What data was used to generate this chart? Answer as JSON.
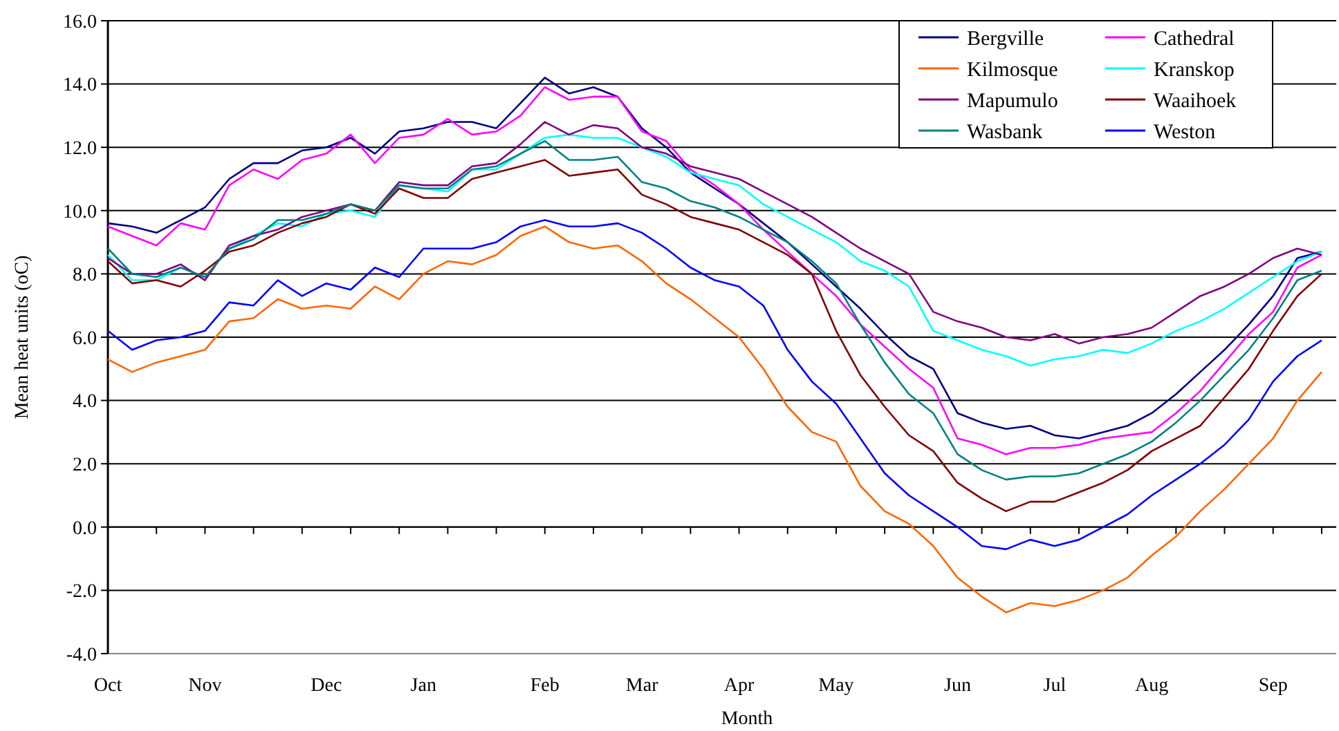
{
  "chart_data": {
    "type": "line",
    "xlabel": "Month",
    "ylabel": "Mean heat units (oC)",
    "categories": [
      "Oct",
      null,
      null,
      null,
      "Nov",
      null,
      null,
      null,
      null,
      "Dec",
      null,
      null,
      null,
      "Jan",
      null,
      null,
      null,
      null,
      "Feb",
      null,
      null,
      null,
      "Mar",
      null,
      null,
      null,
      "Apr",
      null,
      null,
      null,
      "May",
      null,
      null,
      null,
      null,
      "Jun",
      null,
      null,
      null,
      "Jul",
      null,
      null,
      null,
      "Aug",
      null,
      null,
      null,
      null,
      "Sep",
      null,
      null
    ],
    "ylim": [
      -4,
      16
    ],
    "yticks": [
      {
        "value": -4,
        "label": "-4.0"
      },
      {
        "value": -2,
        "label": "-2.0"
      },
      {
        "value": 0,
        "label": "0.0"
      },
      {
        "value": 2,
        "label": "2.0"
      },
      {
        "value": 4,
        "label": "4.0"
      },
      {
        "value": 6,
        "label": "6.0"
      },
      {
        "value": 8,
        "label": "8.0"
      },
      {
        "value": 10,
        "label": "10.0"
      },
      {
        "value": 12,
        "label": "12.0"
      },
      {
        "value": 14,
        "label": "14.0"
      },
      {
        "value": 16,
        "label": "16.0"
      }
    ],
    "grid": "y",
    "legend": "top right",
    "marker": "none",
    "line_style": "solid",
    "series": [
      {
        "name": "Bergville",
        "color": "#000080",
        "values": [
          9.6,
          9.5,
          9.3,
          9.7,
          10.1,
          11.0,
          11.5,
          11.5,
          11.9,
          12.0,
          12.3,
          11.8,
          12.5,
          12.6,
          12.8,
          12.8,
          12.6,
          13.4,
          14.2,
          13.7,
          13.9,
          13.6,
          12.6,
          12.0,
          11.2,
          10.7,
          10.2,
          9.6,
          9.0,
          8.3,
          7.6,
          6.9,
          6.1,
          5.4,
          5.0,
          3.6,
          3.3,
          3.1,
          3.2,
          2.9,
          2.8,
          3.0,
          3.2,
          3.6,
          4.2,
          4.9,
          5.6,
          6.4,
          7.3,
          8.5,
          8.7
        ]
      },
      {
        "name": "Cathedral",
        "color": "#ff00ff",
        "values": [
          9.5,
          9.2,
          8.9,
          9.6,
          9.4,
          10.8,
          11.3,
          11.0,
          11.6,
          11.8,
          12.4,
          11.5,
          12.3,
          12.4,
          12.9,
          12.4,
          12.5,
          13.0,
          13.9,
          13.5,
          13.6,
          13.6,
          12.5,
          12.2,
          11.3,
          10.8,
          10.2,
          9.4,
          8.7,
          8.0,
          7.3,
          6.4,
          5.7,
          5.0,
          4.4,
          2.8,
          2.6,
          2.3,
          2.5,
          2.5,
          2.6,
          2.8,
          2.9,
          3.0,
          3.6,
          4.3,
          5.2,
          6.1,
          6.8,
          8.2,
          8.6
        ]
      },
      {
        "name": "Kilmosque",
        "color": "#ff6600",
        "values": [
          5.3,
          4.9,
          5.2,
          5.4,
          5.6,
          6.5,
          6.6,
          7.2,
          6.9,
          7.0,
          6.9,
          7.6,
          7.2,
          8.0,
          8.4,
          8.3,
          8.6,
          9.2,
          9.5,
          9.0,
          8.8,
          8.9,
          8.4,
          7.7,
          7.2,
          6.6,
          6.0,
          5.0,
          3.8,
          3.0,
          2.7,
          1.3,
          0.5,
          0.1,
          -0.6,
          -1.6,
          -2.2,
          -2.7,
          -2.4,
          -2.5,
          -2.3,
          -2.0,
          -1.6,
          -0.9,
          -0.3,
          0.5,
          1.2,
          2.0,
          2.8,
          4.0,
          4.9
        ]
      },
      {
        "name": "Kranskop",
        "color": "#00ffff",
        "values": [
          8.6,
          7.8,
          7.8,
          8.2,
          7.9,
          8.8,
          9.2,
          9.6,
          9.5,
          9.9,
          10.0,
          9.8,
          10.8,
          10.7,
          10.6,
          11.3,
          11.3,
          11.8,
          12.3,
          12.4,
          12.3,
          12.3,
          12.0,
          11.7,
          11.2,
          11.0,
          10.8,
          10.2,
          9.8,
          9.4,
          9.0,
          8.4,
          8.1,
          7.6,
          6.2,
          5.9,
          5.6,
          5.4,
          5.1,
          5.3,
          5.4,
          5.6,
          5.5,
          5.8,
          6.2,
          6.5,
          6.9,
          7.4,
          7.9,
          8.4,
          8.7
        ]
      },
      {
        "name": "Mapumulo",
        "color": "#800080",
        "values": [
          8.5,
          8.0,
          8.0,
          8.3,
          7.8,
          8.9,
          9.2,
          9.4,
          9.8,
          10.0,
          10.2,
          10.0,
          10.9,
          10.8,
          10.8,
          11.4,
          11.5,
          12.1,
          12.8,
          12.4,
          12.7,
          12.6,
          12.0,
          11.8,
          11.4,
          11.2,
          11.0,
          10.6,
          10.2,
          9.8,
          9.3,
          8.8,
          8.4,
          8.0,
          6.8,
          6.5,
          6.3,
          6.0,
          5.9,
          6.1,
          5.8,
          6.0,
          6.1,
          6.3,
          6.8,
          7.3,
          7.6,
          8.0,
          8.5,
          8.8,
          8.6
        ]
      },
      {
        "name": "Waaihoek",
        "color": "#800000",
        "values": [
          8.4,
          7.7,
          7.8,
          7.6,
          8.1,
          8.7,
          8.9,
          9.3,
          9.6,
          9.8,
          10.2,
          9.9,
          10.7,
          10.4,
          10.4,
          11.0,
          11.2,
          11.4,
          11.6,
          11.1,
          11.2,
          11.3,
          10.5,
          10.2,
          9.8,
          9.6,
          9.4,
          9.0,
          8.6,
          8.0,
          6.2,
          4.8,
          3.8,
          2.9,
          2.4,
          1.4,
          0.9,
          0.5,
          0.8,
          0.8,
          1.1,
          1.4,
          1.8,
          2.4,
          2.8,
          3.2,
          4.1,
          5.0,
          6.2,
          7.3,
          8.0
        ]
      },
      {
        "name": "Wasbank",
        "color": "#008080",
        "values": [
          8.8,
          8.0,
          7.9,
          8.2,
          7.9,
          8.8,
          9.1,
          9.7,
          9.7,
          9.9,
          10.2,
          10.0,
          10.8,
          10.7,
          10.7,
          11.3,
          11.4,
          11.8,
          12.2,
          11.6,
          11.6,
          11.7,
          10.9,
          10.7,
          10.3,
          10.1,
          9.8,
          9.4,
          9.0,
          8.4,
          7.7,
          6.4,
          5.2,
          4.2,
          3.6,
          2.3,
          1.8,
          1.5,
          1.6,
          1.6,
          1.7,
          2.0,
          2.3,
          2.7,
          3.3,
          4.0,
          4.8,
          5.6,
          6.6,
          7.8,
          8.1
        ]
      },
      {
        "name": "Weston",
        "color": "#0000ff",
        "values": [
          6.2,
          5.6,
          5.9,
          6.0,
          6.2,
          7.1,
          7.0,
          7.8,
          7.3,
          7.7,
          7.5,
          8.2,
          7.9,
          8.8,
          8.8,
          8.8,
          9.0,
          9.5,
          9.7,
          9.5,
          9.5,
          9.6,
          9.3,
          8.8,
          8.2,
          7.8,
          7.6,
          7.0,
          5.6,
          4.6,
          3.9,
          2.8,
          1.7,
          1.0,
          0.5,
          0.0,
          -0.6,
          -0.7,
          -0.4,
          -0.6,
          -0.4,
          0.0,
          0.4,
          1.0,
          1.5,
          2.0,
          2.6,
          3.4,
          4.6,
          5.4,
          5.9
        ]
      }
    ]
  }
}
